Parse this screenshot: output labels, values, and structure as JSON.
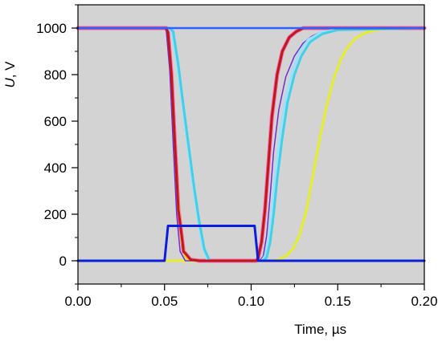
{
  "chart_data": {
    "type": "line",
    "xlabel": "Time, µs",
    "ylabel_italic": "U",
    "ylabel_rest": ", V",
    "xlim": [
      0,
      0.2
    ],
    "ylim": [
      -100,
      1100
    ],
    "background": "#d3d3d3",
    "xticks": [
      "0.00",
      "0.05",
      "0.10",
      "0.15",
      "0.20"
    ],
    "xtick_values": [
      0,
      0.05,
      0.1,
      0.15,
      0.2
    ],
    "yticks": [
      "0",
      "200",
      "400",
      "600",
      "800",
      "1000"
    ],
    "ytick_values": [
      0,
      200,
      400,
      600,
      800,
      1000
    ],
    "series": [
      {
        "color": "#f06ab0",
        "width": 5,
        "x": [
          0,
          0.051,
          0.052,
          0.054,
          0.056,
          0.058,
          0.061,
          0.065,
          0.07,
          0.103,
          0.104,
          0.106,
          0.108,
          0.11,
          0.112,
          0.115,
          0.118,
          0.122,
          0.126,
          0.13,
          0.2
        ],
        "y": [
          1000,
          1000,
          980,
          800,
          500,
          220,
          40,
          5,
          0,
          0,
          10,
          80,
          220,
          420,
          620,
          800,
          900,
          960,
          985,
          1000,
          1000
        ]
      },
      {
        "color": "#ffd400",
        "width": 3,
        "x": [
          0,
          0.051,
          0.052,
          0.054,
          0.056,
          0.058,
          0.06,
          0.062,
          0.065,
          0.2
        ],
        "y": [
          1000,
          1000,
          960,
          760,
          480,
          240,
          80,
          20,
          0,
          0
        ]
      },
      {
        "color": "#e6ee2a",
        "width": 3,
        "x": [
          0,
          0.112,
          0.116,
          0.12,
          0.124,
          0.128,
          0.132,
          0.136,
          0.14,
          0.144,
          0.148,
          0.152,
          0.156,
          0.16,
          0.166,
          0.172,
          0.18,
          0.2
        ],
        "y": [
          0,
          0,
          5,
          20,
          50,
          110,
          220,
          380,
          540,
          680,
          790,
          870,
          920,
          955,
          980,
          992,
          998,
          1000
        ]
      },
      {
        "color": "#7030d0",
        "width": 1.5,
        "x": [
          0,
          0.05,
          0.051,
          0.053,
          0.055,
          0.057,
          0.059,
          0.062,
          0.065,
          0.105,
          0.107,
          0.109,
          0.111,
          0.113,
          0.116,
          0.12,
          0.125,
          0.13,
          0.135,
          0.14,
          0.15,
          0.2
        ],
        "y": [
          1000,
          1000,
          990,
          820,
          500,
          200,
          40,
          0,
          0,
          0,
          20,
          110,
          280,
          470,
          650,
          790,
          880,
          935,
          965,
          982,
          995,
          1000
        ]
      },
      {
        "color": "#9ae0ff",
        "width": 3,
        "x": [
          0,
          0.052,
          0.054,
          0.057,
          0.06,
          0.063,
          0.066,
          0.069,
          0.072,
          0.075,
          0.106,
          0.108,
          0.11,
          0.112,
          0.114,
          0.117,
          0.12,
          0.124,
          0.128,
          0.133,
          0.14,
          0.15,
          0.2
        ],
        "y": [
          1000,
          1000,
          990,
          860,
          690,
          520,
          350,
          190,
          60,
          0,
          0,
          20,
          90,
          210,
          370,
          560,
          700,
          820,
          900,
          950,
          980,
          995,
          1000
        ]
      },
      {
        "color": "#40d0e8",
        "width": 3,
        "x": [
          0,
          0.053,
          0.055,
          0.058,
          0.061,
          0.064,
          0.067,
          0.07,
          0.073,
          0.076,
          0.107,
          0.109,
          0.111,
          0.113,
          0.115,
          0.118,
          0.121,
          0.125,
          0.129,
          0.134,
          0.141,
          0.15,
          0.2
        ],
        "y": [
          1000,
          1000,
          985,
          840,
          660,
          490,
          320,
          170,
          50,
          0,
          0,
          15,
          80,
          200,
          350,
          530,
          680,
          800,
          880,
          940,
          975,
          992,
          1000
        ]
      },
      {
        "color": "#c01818",
        "width": 3,
        "x": [
          0,
          0.051,
          0.052,
          0.054,
          0.056,
          0.058,
          0.061,
          0.065,
          0.07,
          0.103,
          0.104,
          0.106,
          0.108,
          0.11,
          0.112,
          0.115,
          0.118,
          0.122,
          0.126,
          0.13,
          0.2
        ],
        "y": [
          1000,
          1000,
          980,
          800,
          500,
          220,
          40,
          5,
          0,
          0,
          10,
          80,
          220,
          420,
          620,
          800,
          900,
          960,
          985,
          1000,
          1000
        ]
      },
      {
        "color": "#3060ff",
        "width": 2.5,
        "x": [
          0,
          0.05,
          0.2
        ],
        "y": [
          1000,
          1000,
          1000
        ]
      },
      {
        "color": "#0a1edc",
        "width": 3,
        "x": [
          0,
          0.05,
          0.052,
          0.102,
          0.104,
          0.2
        ],
        "y": [
          0,
          0,
          150,
          150,
          0,
          0
        ]
      }
    ]
  }
}
